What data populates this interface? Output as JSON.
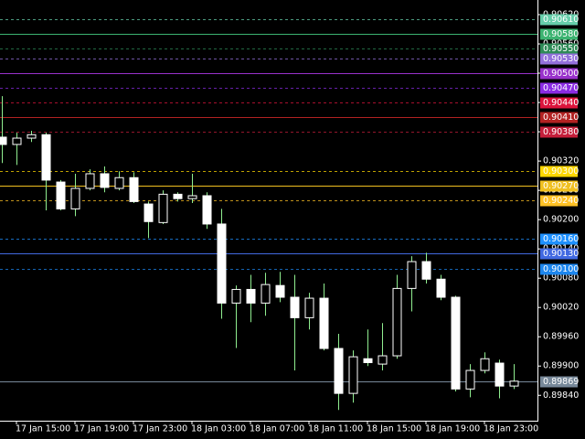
{
  "chart_data": {
    "type": "candlestick",
    "categories": [
      null,
      "17 Jan 15:00",
      null,
      null,
      null,
      "17 Jan 19:00",
      null,
      null,
      null,
      "17 Jan 23:00",
      null,
      null,
      null,
      "18 Jan 03:00",
      null,
      null,
      null,
      "18 Jan 07:00",
      null,
      null,
      null,
      "18 Jan 11:00",
      null,
      null,
      null,
      "18 Jan 15:00",
      null,
      null,
      null,
      "18 Jan 19:00",
      null,
      null,
      null,
      "18 Jan 23:00",
      null,
      null
    ],
    "open": [
      0.90369,
      0.90354,
      0.90367,
      0.90374,
      0.90277,
      0.90222,
      0.90264,
      0.90294,
      0.90264,
      0.90286,
      0.90232,
      0.90194,
      0.90252,
      0.90243,
      0.90249,
      0.90191,
      0.90029,
      0.90057,
      0.90029,
      0.90065,
      0.90041,
      0.89999,
      0.90039,
      0.89936,
      0.89844,
      0.89915,
      0.89904,
      0.89921,
      0.90059,
      0.90114,
      0.90078,
      0.90041,
      0.89853,
      0.89891,
      0.89906,
      0.89859
    ],
    "high": [
      0.90453,
      0.90378,
      0.90382,
      0.90378,
      0.90281,
      0.90294,
      0.90303,
      0.90309,
      0.90299,
      0.90297,
      0.90237,
      0.9026,
      0.90256,
      0.90294,
      0.90256,
      0.90222,
      0.90065,
      0.90087,
      0.90091,
      0.90093,
      0.90087,
      0.9005,
      0.90069,
      0.89966,
      0.89932,
      0.89975,
      0.89988,
      0.90087,
      0.90125,
      0.90132,
      0.90087,
      0.90044,
      0.89904,
      0.89928,
      0.89913,
      0.89904
    ],
    "low": [
      0.90316,
      0.90312,
      0.90359,
      0.90219,
      0.90219,
      0.90207,
      0.9026,
      0.90256,
      0.9026,
      0.90234,
      0.90162,
      0.90191,
      0.90237,
      0.90234,
      0.90181,
      0.89997,
      0.89937,
      0.8999,
      0.90003,
      0.90031,
      0.89891,
      0.89975,
      0.89932,
      0.8981,
      0.89825,
      0.899,
      0.89891,
      0.89915,
      0.90012,
      0.90069,
      0.90035,
      0.89848,
      0.89836,
      0.89885,
      0.89834,
      0.89853
    ],
    "close": [
      0.90354,
      0.90367,
      0.90374,
      0.90281,
      0.90222,
      0.90264,
      0.90294,
      0.90266,
      0.90286,
      0.90237,
      0.90196,
      0.90252,
      0.90243,
      0.90249,
      0.90191,
      0.90029,
      0.90057,
      0.90029,
      0.90067,
      0.90041,
      0.89999,
      0.90039,
      0.89936,
      0.89844,
      0.89919,
      0.89907,
      0.89921,
      0.90059,
      0.90114,
      0.90078,
      0.90041,
      0.89853,
      0.89891,
      0.89915,
      0.89859,
      0.89869
    ],
    "bull_color": "#000000",
    "bear_color": "#ffffff",
    "line_color": "#90ee90",
    "ylim": [
      0.89788,
      0.9065
    ],
    "yticks": [
      {
        "value": 0.8984,
        "label": "0.89840"
      },
      {
        "value": 0.899,
        "label": "0.89900"
      },
      {
        "value": 0.8996,
        "label": "0.89960"
      },
      {
        "value": 0.9002,
        "label": "0.90020"
      },
      {
        "value": 0.9008,
        "label": "0.90080"
      },
      {
        "value": 0.9014,
        "label": "0.90140"
      },
      {
        "value": 0.902,
        "label": "0.90200"
      },
      {
        "value": 0.9026,
        "label": "0.90260"
      },
      {
        "value": 0.9032,
        "label": "0.90320"
      },
      {
        "value": 0.9038,
        "label": "0.90380"
      },
      {
        "value": 0.9044,
        "label": "0.90440"
      },
      {
        "value": 0.905,
        "label": "0.90500"
      },
      {
        "value": 0.9056,
        "label": "0.90560"
      },
      {
        "value": 0.9062,
        "label": "0.90620"
      }
    ],
    "levels": [
      {
        "value": 0.9061,
        "label": "0.90610",
        "color": "#66cdaa",
        "style": "dashed"
      },
      {
        "value": 0.9058,
        "label": "0.90580",
        "color": "#3cb371",
        "style": "solid"
      },
      {
        "value": 0.9055,
        "label": "0.90550",
        "color": "#2e8b57",
        "style": "dashed"
      },
      {
        "value": 0.9053,
        "label": "0.90530",
        "color": "#9370db",
        "style": "dashed"
      },
      {
        "value": 0.905,
        "label": "0.90500",
        "color": "#9932cc",
        "style": "solid"
      },
      {
        "value": 0.9047,
        "label": "0.90470",
        "color": "#8a2be2",
        "style": "dashed"
      },
      {
        "value": 0.9044,
        "label": "0.90440",
        "color": "#dc143c",
        "style": "dashed"
      },
      {
        "value": 0.9041,
        "label": "0.90410",
        "color": "#b22222",
        "style": "solid"
      },
      {
        "value": 0.9038,
        "label": "0.90380",
        "color": "#c41e3a",
        "style": "dashed"
      },
      {
        "value": 0.903,
        "label": "0.90300",
        "color": "#ffd700",
        "style": "dashed"
      },
      {
        "value": 0.9027,
        "label": "0.90270",
        "color": "#f0c020",
        "style": "solid"
      },
      {
        "value": 0.9024,
        "label": "0.90240",
        "color": "#ffc125",
        "style": "dashed"
      },
      {
        "value": 0.9016,
        "label": "0.90160",
        "color": "#1e90ff",
        "style": "dashed"
      },
      {
        "value": 0.9013,
        "label": "0.90130",
        "color": "#4169e1",
        "style": "solid"
      },
      {
        "value": 0.901,
        "label": "0.90100",
        "color": "#1c86ee",
        "style": "dashed"
      },
      {
        "value": 0.89869,
        "label": "0.89869",
        "color": "#778899",
        "style": "solid"
      }
    ]
  }
}
